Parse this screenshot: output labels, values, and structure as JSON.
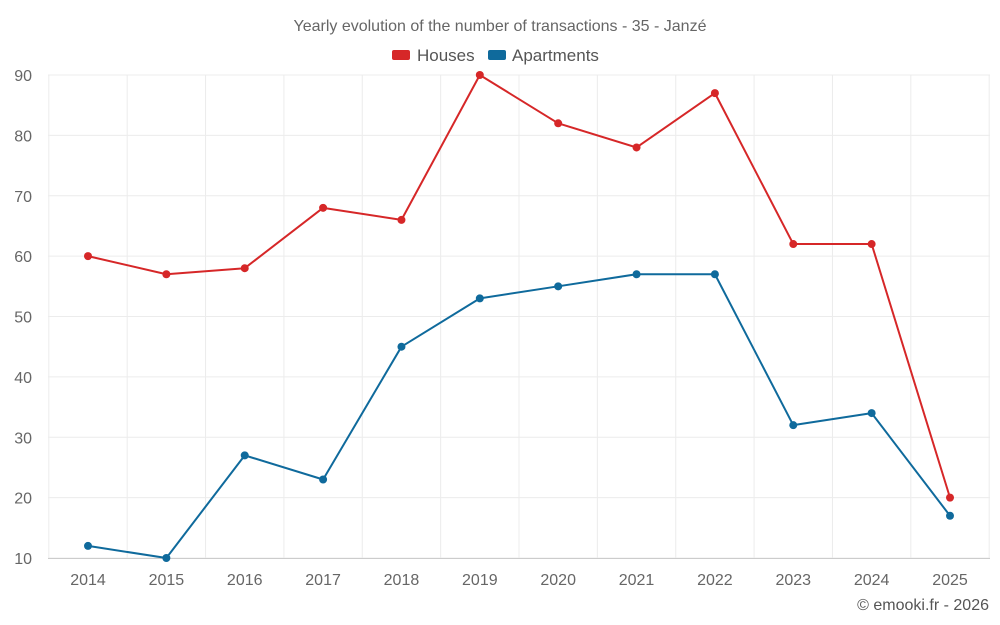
{
  "chart_data": {
    "type": "line",
    "title": "Yearly evolution of the number of transactions - 35 - Janzé",
    "categories": [
      "2014",
      "2015",
      "2016",
      "2017",
      "2018",
      "2019",
      "2020",
      "2021",
      "2022",
      "2023",
      "2024",
      "2025"
    ],
    "series": [
      {
        "name": "Houses",
        "color": "#d62728",
        "values": [
          60,
          57,
          58,
          68,
          66,
          90,
          82,
          78,
          87,
          62,
          62,
          20
        ]
      },
      {
        "name": "Apartments",
        "color": "#0f6a9c",
        "values": [
          12,
          10,
          27,
          23,
          45,
          53,
          55,
          57,
          57,
          32,
          34,
          17
        ]
      }
    ],
    "ylim": [
      10,
      90
    ],
    "yticks": [
      10,
      20,
      30,
      40,
      50,
      60,
      70,
      80,
      90
    ],
    "xlabel": "",
    "ylabel": "",
    "grid": true,
    "legend_position": "top-center",
    "credit": "© emooki.fr - 2026"
  }
}
